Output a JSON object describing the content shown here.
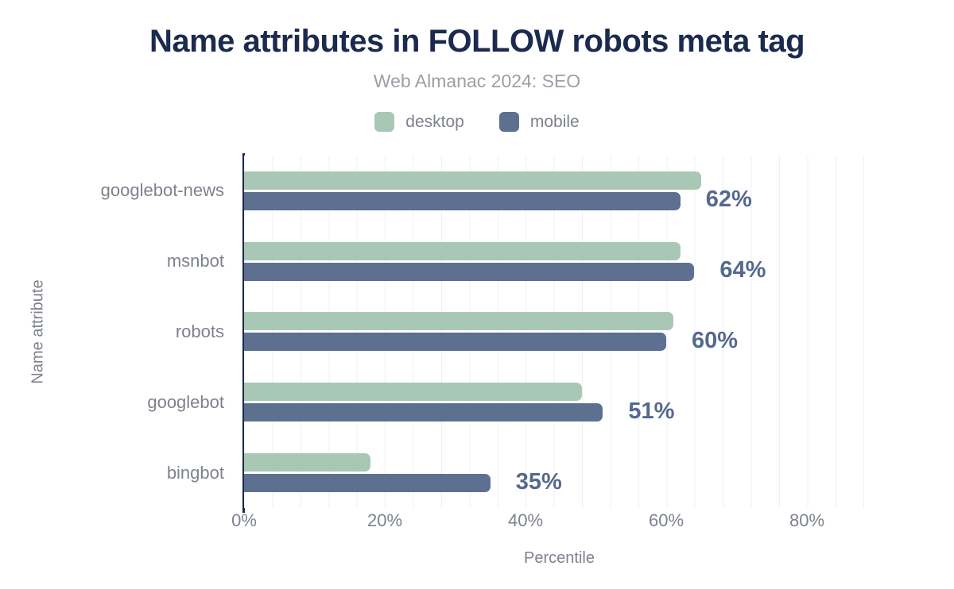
{
  "title": "Name attributes in FOLLOW robots meta tag",
  "subtitle": "Web Almanac 2024: SEO",
  "legend": [
    {
      "label": "desktop",
      "color": "#a8c8b5"
    },
    {
      "label": "mobile",
      "color": "#5d7090"
    }
  ],
  "colors": {
    "title": "#1b2a4e",
    "subtitle": "#9aa0a6",
    "desktop_bar": "#a8c8b5",
    "mobile_bar": "#5d7090",
    "value_label": "#55698f",
    "axis_line": "#1b2a4e",
    "gridline": "#eef0f3",
    "axis_text": "#7d828c"
  },
  "chart_data": {
    "type": "bar",
    "orientation": "horizontal",
    "title": "Name attributes in FOLLOW robots meta tag",
    "subtitle": "Web Almanac 2024: SEO",
    "categories": [
      "googlebot-news",
      "msnbot",
      "robots",
      "googlebot",
      "bingbot"
    ],
    "series": [
      {
        "name": "desktop",
        "color": "#a8c8b5",
        "values": [
          65,
          62,
          61,
          48,
          18
        ]
      },
      {
        "name": "mobile",
        "color": "#5d7090",
        "values": [
          62,
          64,
          60,
          51,
          35
        ]
      }
    ],
    "bar_labels": [
      "62%",
      "64%",
      "60%",
      "51%",
      "35%"
    ],
    "bar_labels_series": "mobile",
    "xlabel": "Percentile",
    "ylabel": "Name attribute",
    "x_ticks": [
      "0%",
      "20%",
      "40%",
      "60%",
      "80%"
    ],
    "x_tick_values": [
      0,
      20,
      40,
      60,
      80
    ],
    "xlim": [
      0,
      89.6
    ],
    "grid_step_percent": 4,
    "grid": true,
    "legend_position": "top"
  }
}
